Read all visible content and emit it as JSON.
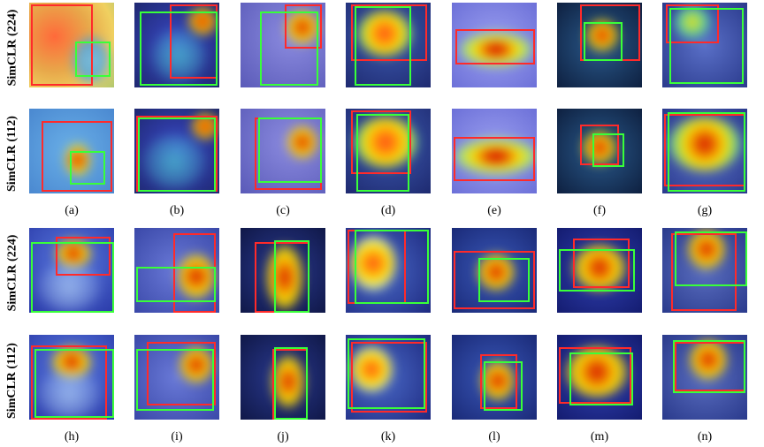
{
  "row_labels": [
    "SimCLR (224)",
    "SimCLR (112)",
    "SimCLR (224)",
    "SimCLR (112)"
  ],
  "captions_top": [
    "(a)",
    "(b)",
    "(c)",
    "(d)",
    "(e)",
    "(f)",
    "(g)"
  ],
  "captions_bottom": [
    "(h)",
    "(i)",
    "(j)",
    "(k)",
    "(l)",
    "(m)",
    "(n)"
  ],
  "colors": {
    "pred_box": "#ff2a2a",
    "gt_box": "#39ff39",
    "heat_hot": "#d40000",
    "heat_mid": "#ffe000",
    "heat_cool": "#2a3cd8"
  }
}
